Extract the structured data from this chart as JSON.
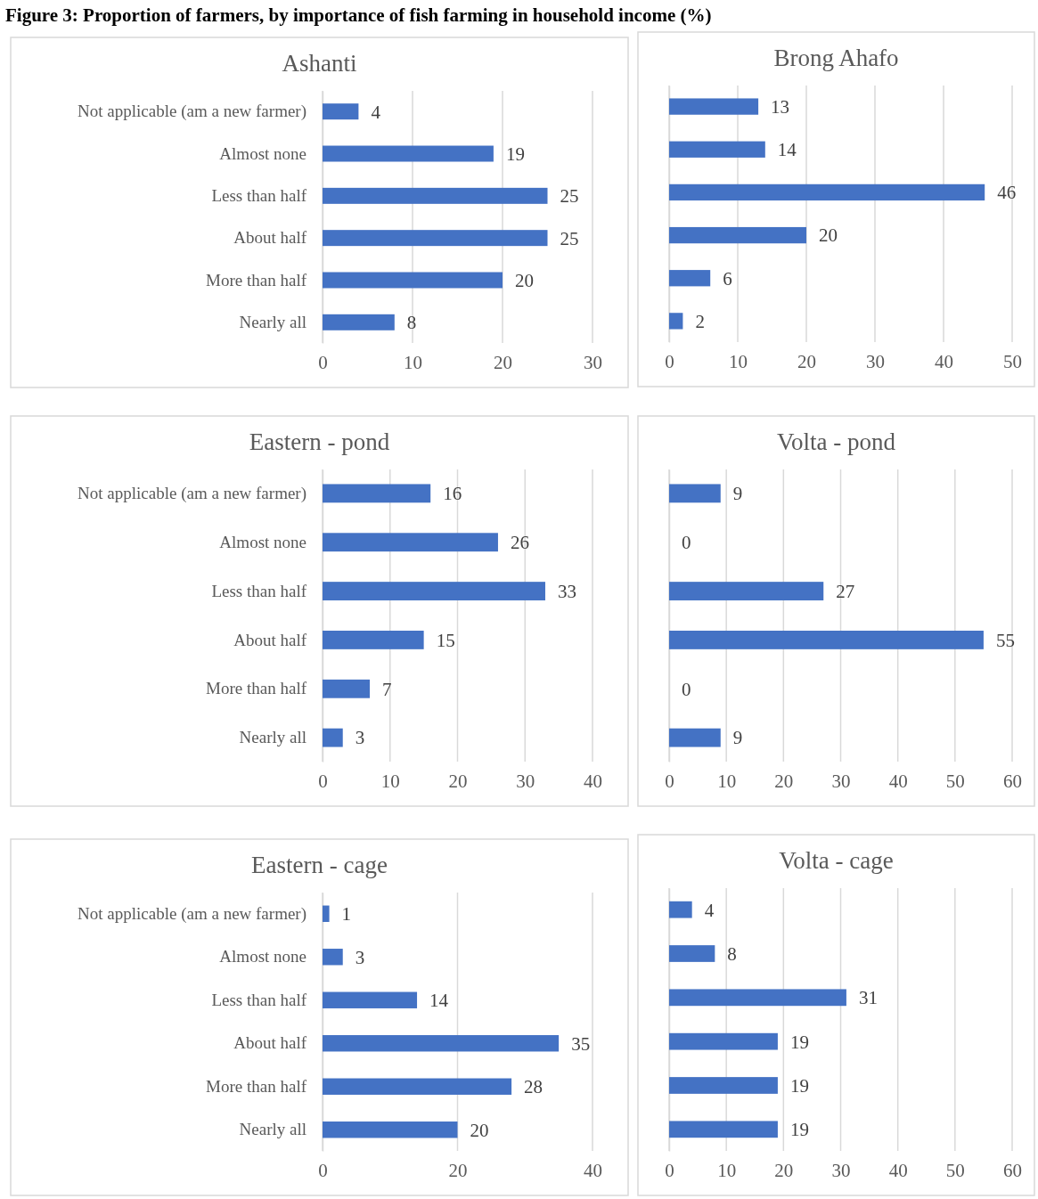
{
  "chart_data": [
    {
      "type": "other",
      "title": "Figure 3: Proportion of farmers, by importance of fish farming in household income (%)"
    },
    {
      "type": "bar",
      "orientation": "horizontal",
      "title": "Ashanti",
      "categories": [
        "Not applicable (am a new farmer)",
        "Almost none",
        "Less than half",
        "About half",
        "More than half",
        "Nearly all"
      ],
      "values": [
        4,
        19,
        25,
        25,
        20,
        8
      ],
      "color": "#4472c4",
      "xlim": [
        0,
        30
      ],
      "xticks": [
        0,
        10,
        20,
        30
      ],
      "grid": "x",
      "data_labels": true
    },
    {
      "type": "bar",
      "orientation": "horizontal",
      "title": "Brong Ahafo",
      "categories": [
        null,
        null,
        null,
        null,
        null,
        null
      ],
      "values": [
        13,
        14,
        46,
        20,
        6,
        2
      ],
      "color": "#4472c4",
      "xlim": [
        0,
        50
      ],
      "xticks": [
        0,
        10,
        20,
        30,
        40,
        50
      ],
      "grid": "x",
      "data_labels": true
    },
    {
      "type": "bar",
      "orientation": "horizontal",
      "title": "Eastern - pond",
      "categories": [
        "Not applicable (am a new farmer)",
        "Almost none",
        "Less than half",
        "About half",
        "More than half",
        "Nearly all"
      ],
      "values": [
        16,
        26,
        33,
        15,
        7,
        3
      ],
      "color": "#4472c4",
      "xlim": [
        0,
        40
      ],
      "xticks": [
        0,
        10,
        20,
        30,
        40
      ],
      "grid": "x",
      "data_labels": true
    },
    {
      "type": "bar",
      "orientation": "horizontal",
      "title": "Volta - pond",
      "categories": [
        null,
        null,
        null,
        null,
        null,
        null
      ],
      "values": [
        9,
        0,
        27,
        55,
        0,
        9
      ],
      "color": "#4472c4",
      "xlim": [
        0,
        60
      ],
      "xticks": [
        0,
        10,
        20,
        30,
        40,
        50,
        60
      ],
      "grid": "x",
      "data_labels": true
    },
    {
      "type": "bar",
      "orientation": "horizontal",
      "title": "Eastern - cage",
      "categories": [
        "Not applicable (am a new farmer)",
        "Almost none",
        "Less than half",
        "About half",
        "More than half",
        "Nearly all"
      ],
      "values": [
        1,
        3,
        14,
        35,
        28,
        20
      ],
      "color": "#4472c4",
      "xlim": [
        0,
        40
      ],
      "xticks": [
        0,
        20,
        40
      ],
      "grid": "x",
      "data_labels": true
    },
    {
      "type": "bar",
      "orientation": "horizontal",
      "title": "Volta - cage",
      "categories": [
        null,
        null,
        null,
        null,
        null,
        null
      ],
      "values": [
        4,
        8,
        31,
        19,
        19,
        19
      ],
      "color": "#4472c4",
      "xlim": [
        0,
        60
      ],
      "xticks": [
        0,
        10,
        20,
        30,
        40,
        50,
        60
      ],
      "grid": "x",
      "data_labels": true
    }
  ]
}
